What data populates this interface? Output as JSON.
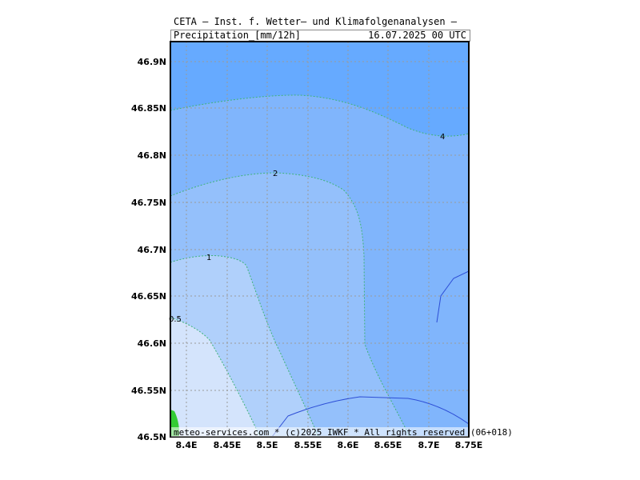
{
  "header": {
    "title": "CETA — Inst. f. Wetter— und Klimafolgenanalysen —",
    "variable": "Precipitation_[mm/12h]",
    "valid_time": "16.07.2025 00 UTC"
  },
  "footer": "meteo-services.com * (c)2025 IWKF * All rights reserved (06+018)",
  "map": {
    "lon_range": [
      8.38,
      8.75
    ],
    "lat_range": [
      46.5,
      46.92
    ],
    "x_ticks": [
      "8.4E",
      "8.45E",
      "8.5E",
      "8.55E",
      "8.6E",
      "8.65E",
      "8.7E",
      "8.75E"
    ],
    "y_ticks": [
      "46.9N",
      "46.85N",
      "46.8N",
      "46.75N",
      "46.7N",
      "46.65N",
      "46.6N",
      "46.55N",
      "46.5N"
    ],
    "contour_labels": [
      "0.5",
      "1",
      "2",
      "4"
    ],
    "colors": {
      "gt4": "#66aaff",
      "2to4": "#80b5fc",
      "1to2": "#94c0fb",
      "0.5to1": "#b0d0fb",
      "lt0.5": "#d4e4fc",
      "land": "#33cc33",
      "river": "#2d4ed6"
    }
  }
}
